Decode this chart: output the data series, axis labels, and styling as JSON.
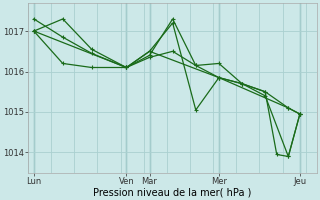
{
  "title": "",
  "xlabel": "Pression niveau de la mer( hPa )",
  "bg_color": "#cce8e8",
  "grid_color": "#aad0d0",
  "vline_color": "#88b8b8",
  "line_color": "#1a6b1a",
  "ylim": [
    1013.5,
    1017.7
  ],
  "xlim": [
    0,
    100
  ],
  "xtick_positions": [
    2,
    34,
    42,
    66,
    94
  ],
  "xtick_labels": [
    "Lun",
    "Ven",
    "Mar",
    "Mer",
    "Jeu"
  ],
  "ytick_positions": [
    1014,
    1015,
    1016,
    1017
  ],
  "ytick_labels": [
    "1014",
    "1015",
    "1016",
    "1017"
  ],
  "line1_x": [
    2,
    12,
    22,
    34,
    42,
    50,
    58,
    66,
    74,
    82,
    90,
    94
  ],
  "line1_y": [
    1017.0,
    1016.2,
    1016.1,
    1016.1,
    1016.5,
    1017.2,
    1015.05,
    1015.85,
    1015.7,
    1015.4,
    1013.9,
    1014.95
  ],
  "line2_x": [
    2,
    12,
    22,
    34,
    42,
    50,
    58,
    66,
    74,
    82,
    90,
    94
  ],
  "line2_y": [
    1017.3,
    1016.85,
    1016.45,
    1016.1,
    1016.35,
    1016.5,
    1016.15,
    1015.85,
    1015.7,
    1015.5,
    1015.1,
    1014.95
  ],
  "line3_x": [
    2,
    34,
    42,
    66,
    90,
    94
  ],
  "line3_y": [
    1017.0,
    1016.1,
    1016.5,
    1015.85,
    1015.1,
    1014.95
  ],
  "line4_x": [
    2,
    12,
    22,
    34,
    42,
    50,
    58,
    66,
    74,
    82,
    86,
    90,
    94
  ],
  "line4_y": [
    1017.0,
    1017.3,
    1016.55,
    1016.1,
    1016.4,
    1017.3,
    1016.15,
    1016.2,
    1015.7,
    1015.5,
    1013.95,
    1013.9,
    1014.95
  ],
  "marker": "+",
  "marker_size": 3,
  "linewidth": 0.9
}
